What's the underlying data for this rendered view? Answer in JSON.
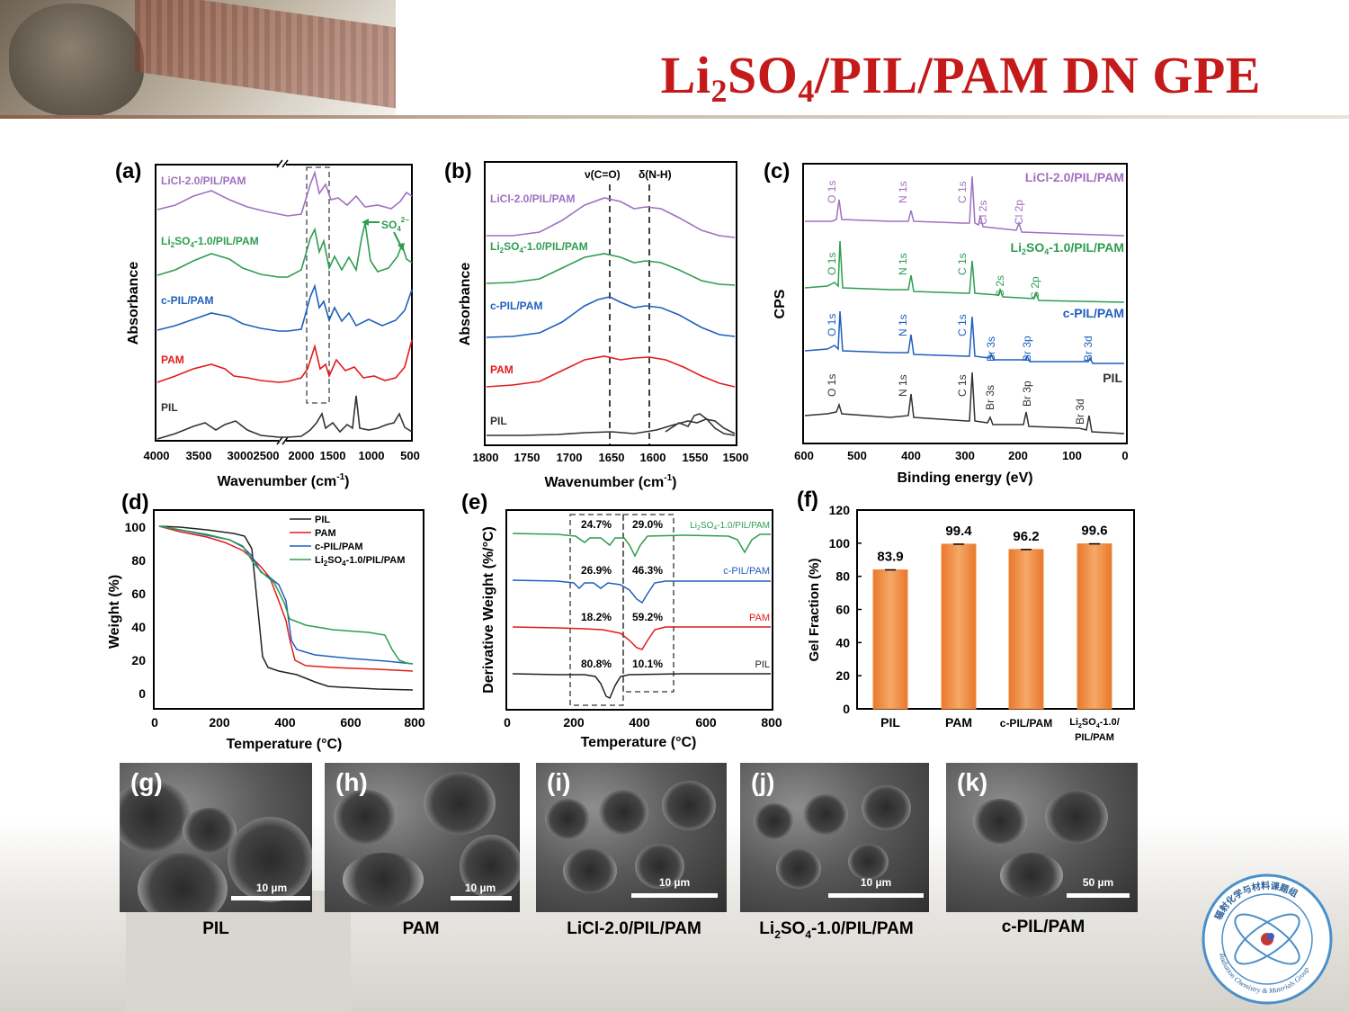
{
  "slide": {
    "title_main": "Li",
    "title_sub1": "2",
    "title_mid": "SO",
    "title_sub2": "4",
    "title_end": "/PIL/PAM DN GPE",
    "colors": {
      "title": "#c41a1a",
      "pil": "#333333",
      "pam": "#e41a1c",
      "cpil": "#1f5fbf",
      "li2so4": "#2e9d4f",
      "licl": "#a070c0",
      "bar": "#f08a3c"
    }
  },
  "panel_a": {
    "label": "(a)",
    "xlabel": "Wavenumber (cm",
    "xlabel_sup": "-1",
    "xlabel_end": ")",
    "ylabel": "Absorbance",
    "xticks": [
      "4000",
      "3500",
      "3000",
      "2500",
      "2000",
      "1500",
      "1000",
      "500"
    ],
    "series": [
      "LiCl-2.0/PIL/PAM",
      "Li2SO4-1.0/PIL/PAM",
      "c-PIL/PAM",
      "PAM",
      "PIL"
    ],
    "li2so4_label": [
      "Li",
      "2",
      "SO",
      "4",
      "-1.0/PIL/PAM"
    ],
    "annotation": [
      "SO",
      "4",
      "2−"
    ]
  },
  "panel_b": {
    "label": "(b)",
    "xlabel": "Wavenumber (cm",
    "xlabel_sup": "-1",
    "xlabel_end": ")",
    "ylabel": "Absorbance",
    "xticks": [
      "1800",
      "1750",
      "1700",
      "1650",
      "1600",
      "1550",
      "1500"
    ],
    "series": [
      "LiCl-2.0/PIL/PAM",
      "Li2SO4-1.0/PIL/PAM",
      "c-PIL/PAM",
      "PAM",
      "PIL"
    ],
    "li2so4_label": [
      "Li",
      "2",
      "SO",
      "4",
      "-1.0/PIL/PAM"
    ],
    "marker1": "ν(C=O)",
    "marker2": "δ(N-H)"
  },
  "panel_c": {
    "label": "(c)",
    "xlabel": "Binding energy (eV)",
    "ylabel": "CPS",
    "xticks": [
      "600",
      "500",
      "400",
      "300",
      "200",
      "100",
      "0"
    ],
    "series": [
      "LiCl-2.0/PIL/PAM",
      "Li2SO4-1.0/PIL/PAM",
      "c-PIL/PAM",
      "PIL"
    ],
    "li2so4_label": [
      "Li",
      "2",
      "SO",
      "4",
      "-1.0/PIL/PAM"
    ],
    "peaks_licl": [
      "O 1s",
      "N 1s",
      "C 1s",
      "Cl 2s",
      "Cl 2p"
    ],
    "peaks_li2so4": [
      "O 1s",
      "N 1s",
      "C 1s",
      "S 2s",
      "S 2p"
    ],
    "peaks_cpil": [
      "O 1s",
      "N 1s",
      "C 1s",
      "Br 3s",
      "Br 3p",
      "Br 3d"
    ],
    "peaks_pil": [
      "O 1s",
      "N 1s",
      "C 1s",
      "Br 3s",
      "Br 3p",
      "Br 3d"
    ]
  },
  "panel_d": {
    "label": "(d)",
    "xlabel": "Temperature (°C)",
    "ylabel": "Weight (%)",
    "xticks": [
      "0",
      "200",
      "400",
      "600",
      "800"
    ],
    "yticks": [
      "0",
      "20",
      "40",
      "60",
      "80",
      "100"
    ],
    "legend": [
      "PIL",
      "PAM",
      "c-PIL/PAM",
      "Li2SO4-1.0/PIL/PAM"
    ],
    "li2so4_label": [
      "Li",
      "2",
      "SO",
      "4",
      "-1.0/PIL/PAM"
    ]
  },
  "panel_e": {
    "label": "(e)",
    "xlabel": "Temperature (°C)",
    "ylabel": "Derivative Weight (%/°C)",
    "xticks": [
      "0",
      "200",
      "400",
      "600",
      "800"
    ],
    "series": [
      "Li2SO4-1.0/PIL/PAM",
      "c-PIL/PAM",
      "PAM",
      "PIL"
    ],
    "li2so4_label": [
      "Li",
      "2",
      "SO",
      "4",
      "-1.0/PIL/PAM"
    ],
    "percent_left": [
      "24.7%",
      "26.9%",
      "18.2%",
      "80.8%"
    ],
    "percent_right": [
      "29.0%",
      "46.3%",
      "59.2%",
      "10.1%"
    ]
  },
  "chart_data": {
    "type": "bar",
    "title": "",
    "xlabel": "",
    "ylabel": "Gel Fraction (%)",
    "categories": [
      "PIL",
      "PAM",
      "c-PIL/PAM",
      "Li2SO4-1.0/PIL/PAM"
    ],
    "values": [
      83.9,
      99.4,
      96.2,
      99.6
    ],
    "value_labels": [
      "83.9",
      "99.4",
      "96.2",
      "99.6"
    ],
    "ylim": [
      0,
      120
    ],
    "yticks": [
      "0",
      "20",
      "40",
      "60",
      "80",
      "100",
      "120"
    ],
    "label": "(f)",
    "cat4_line1": [
      "Li",
      "2",
      "SO",
      "4",
      "-1.0/"
    ],
    "cat4_line2": "PIL/PAM"
  },
  "sem": [
    {
      "tag": "(g)",
      "scale": "10 µm",
      "caption": "PIL"
    },
    {
      "tag": "(h)",
      "scale": "10 µm",
      "caption": "PAM"
    },
    {
      "tag": "(i)",
      "scale": "10 µm",
      "caption": "LiCl-2.0/PIL/PAM"
    },
    {
      "tag": "(j)",
      "scale": "10 µm",
      "caption_parts": [
        "Li",
        "2",
        "SO",
        "4",
        "-1.0/PIL/PAM"
      ]
    },
    {
      "tag": "(k)",
      "scale": "50 µm",
      "caption": "c-PIL/PAM"
    }
  ],
  "logo": {
    "text_cn": "辐射化学与材料课题组",
    "text_en": "Radiation Chemistry & Materials Group"
  }
}
